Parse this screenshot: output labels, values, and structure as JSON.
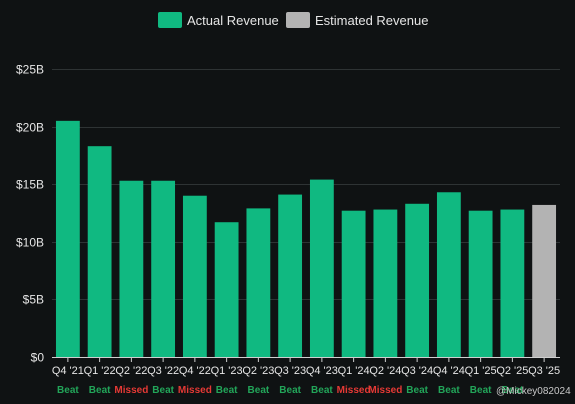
{
  "chart_data": {
    "type": "bar",
    "categories": [
      "Q4 '21",
      "Q1 '22",
      "Q2 '22",
      "Q3 '22",
      "Q4 '22",
      "Q1 '23",
      "Q2 '23",
      "Q3 '23",
      "Q4 '23",
      "Q1 '24",
      "Q2 '24",
      "Q3 '24",
      "Q4 '24",
      "Q1 '25",
      "Q2 '25",
      "Q3 '25"
    ],
    "series": [
      {
        "name": "Actual Revenue",
        "color": "#10b981",
        "values": [
          20.5,
          18.3,
          15.3,
          15.3,
          14.0,
          11.7,
          12.9,
          14.1,
          15.4,
          12.7,
          12.8,
          13.3,
          14.3,
          12.7,
          12.8,
          null
        ]
      },
      {
        "name": "Estimated Revenue",
        "color": "#b3b3b3",
        "values": [
          null,
          null,
          null,
          null,
          null,
          null,
          null,
          null,
          null,
          null,
          null,
          null,
          null,
          null,
          null,
          13.2
        ]
      }
    ],
    "status_labels": [
      "Beat",
      "Beat",
      "Missed",
      "Beat",
      "Missed",
      "Beat",
      "Beat",
      "Beat",
      "Beat",
      "Missed",
      "Missed",
      "Beat",
      "Beat",
      "Beat",
      "Beat",
      ""
    ],
    "status_colors": {
      "Beat": "#22a559",
      "Missed": "#e53935"
    },
    "ylim": [
      0,
      25
    ],
    "yticks": [
      0,
      5,
      10,
      15,
      20,
      25
    ],
    "ytick_labels": [
      "$0",
      "$5B",
      "$10B",
      "$15B",
      "$20B",
      "$25B"
    ],
    "grid": true,
    "legend_position": "top-center",
    "title": "",
    "xlabel": "",
    "ylabel": ""
  },
  "watermark": "@Mickey082024"
}
